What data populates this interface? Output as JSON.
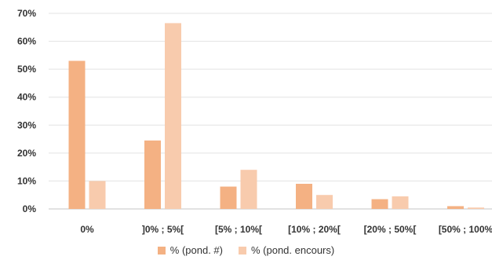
{
  "chart_data": {
    "type": "bar",
    "categories": [
      "0%",
      "]0% ; 5%[",
      "[5% ; 10%[",
      "[10% ; 20%[",
      "[20% ; 50%[",
      "[50% ; 100%"
    ],
    "series": [
      {
        "name": "% (pond. #)",
        "color": "#f4b183",
        "values": [
          53,
          24.5,
          8,
          9,
          3.5,
          1
        ]
      },
      {
        "name": "% (pond. encours)",
        "color": "#f8cbad",
        "values": [
          10,
          66.5,
          14,
          5,
          4.5,
          0.5
        ]
      }
    ],
    "yticks": [
      "0%",
      "10%",
      "20%",
      "30%",
      "40%",
      "50%",
      "60%",
      "70%"
    ],
    "ylim": [
      0,
      70
    ],
    "grid": true,
    "legend_position": "bottom"
  }
}
